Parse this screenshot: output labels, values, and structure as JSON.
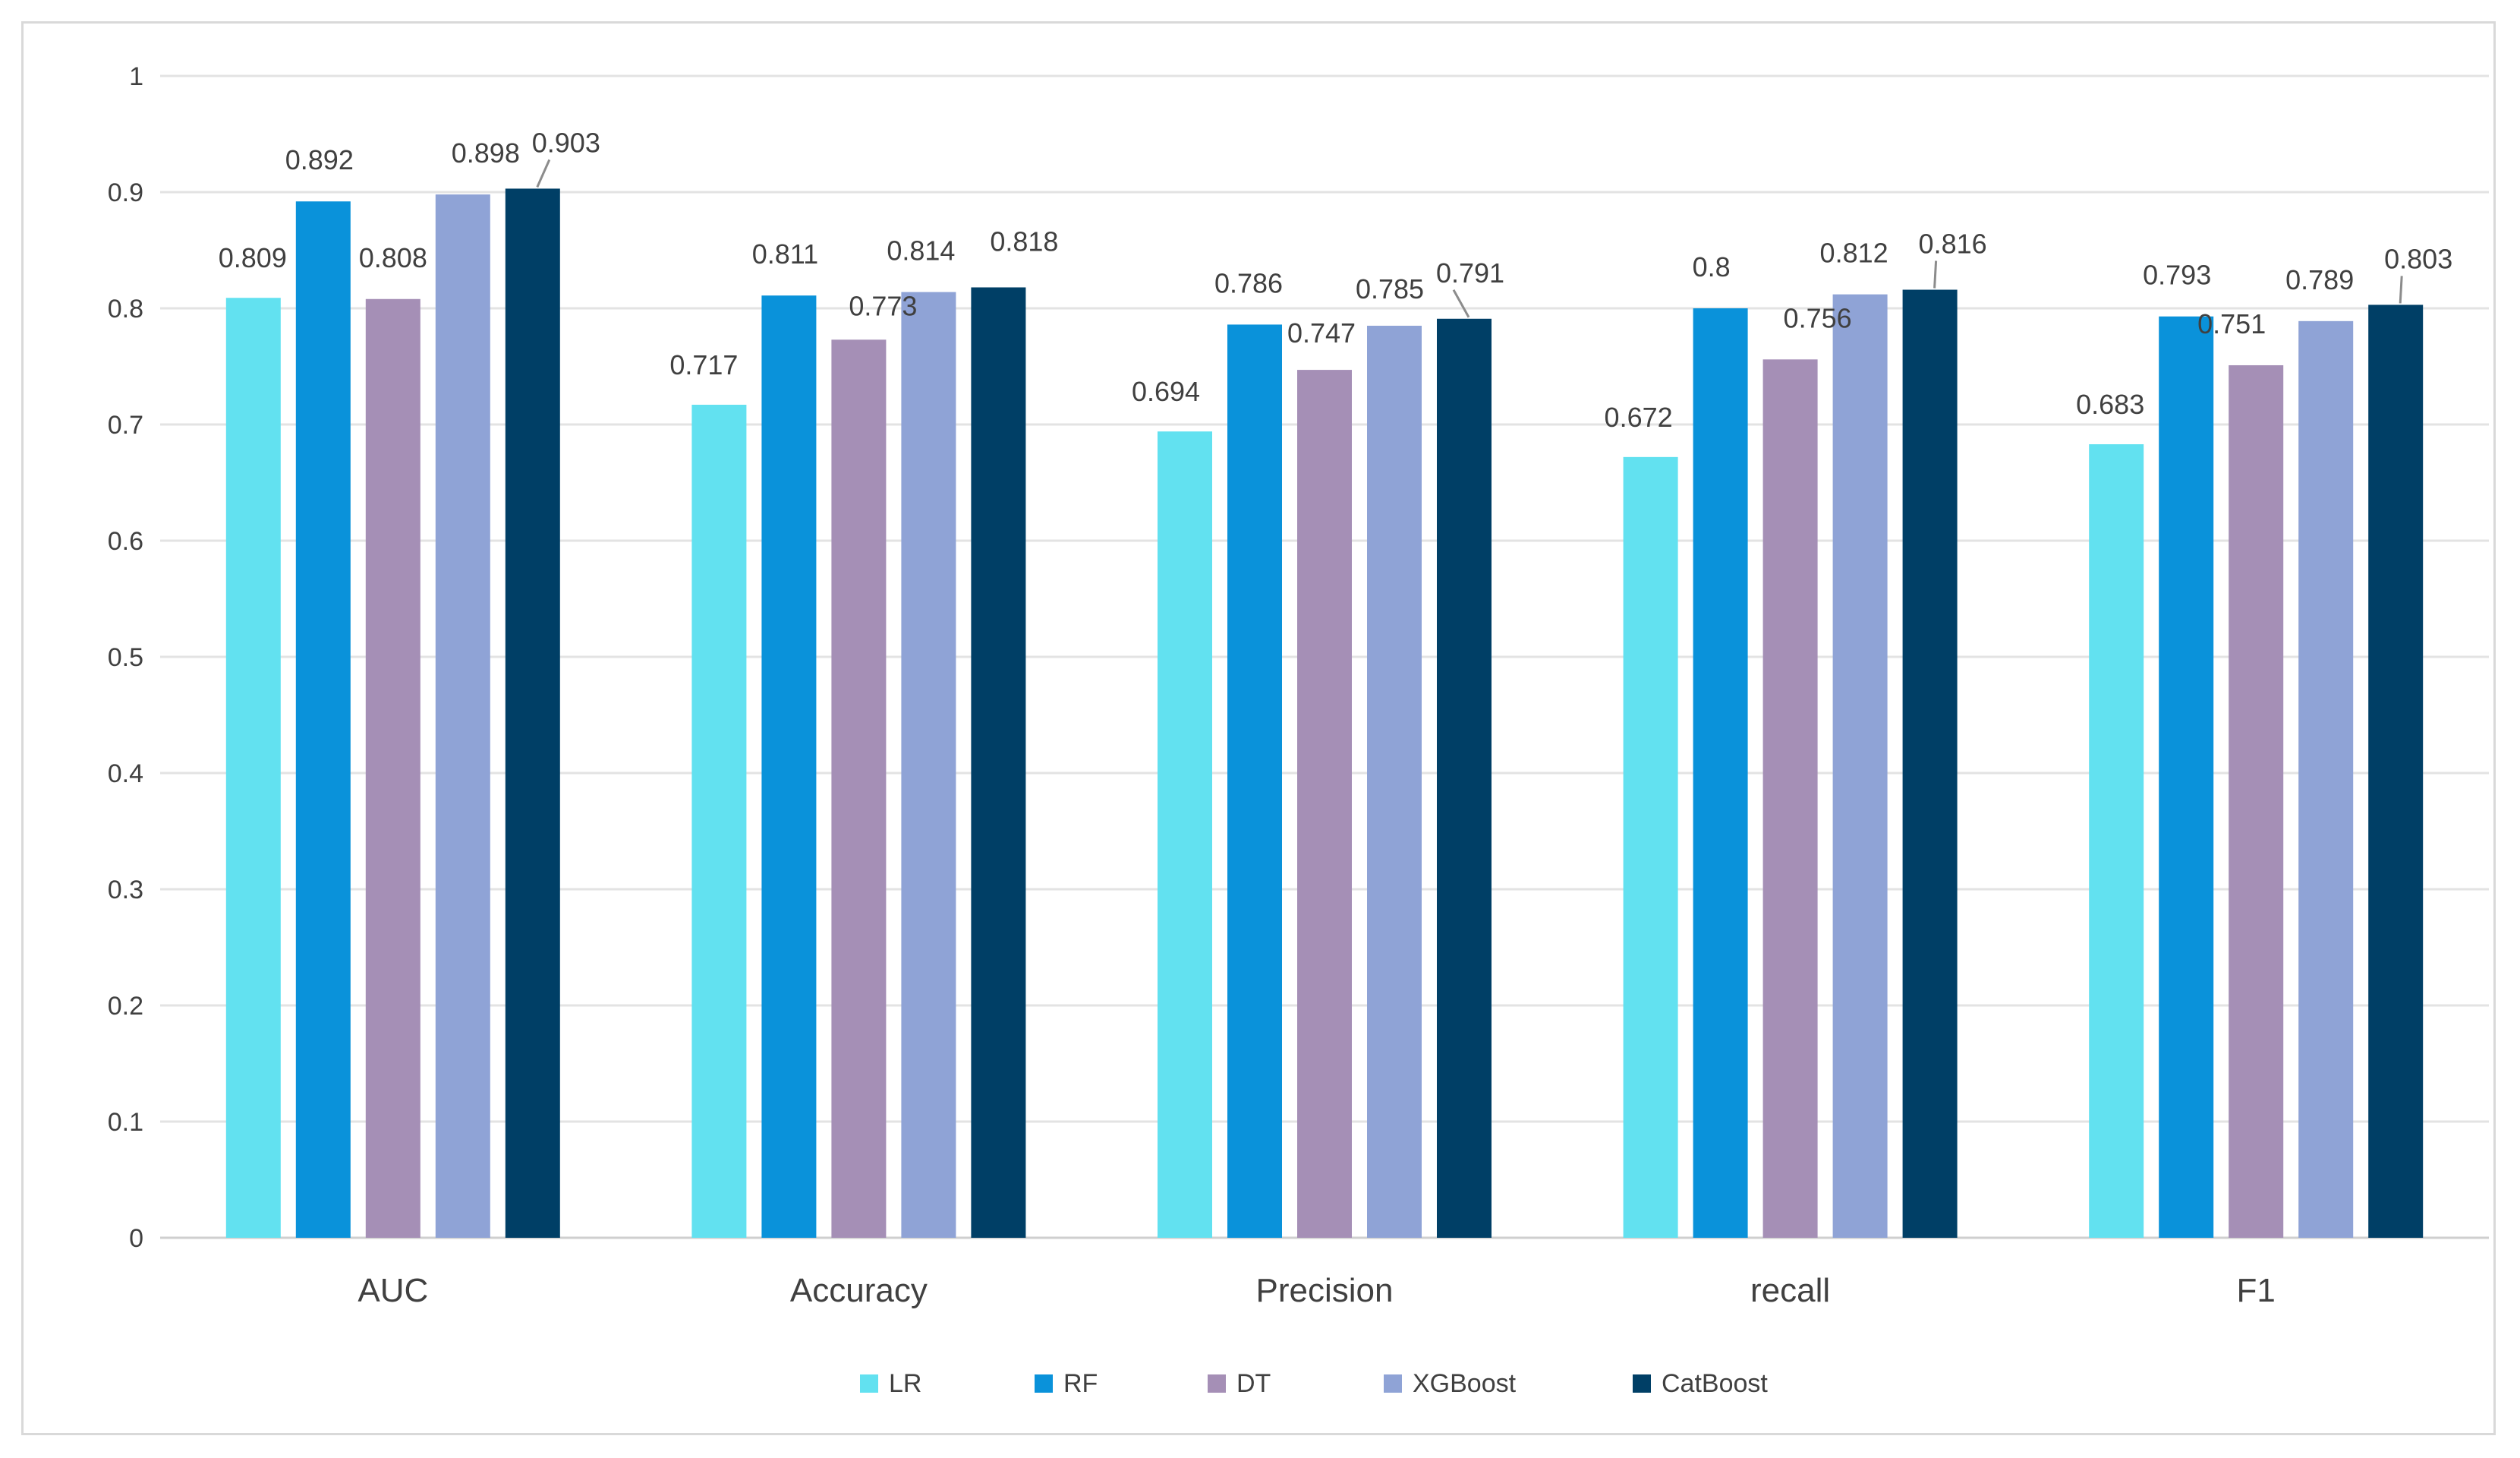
{
  "chart_data": {
    "type": "bar",
    "title": "",
    "xlabel": "",
    "ylabel": "",
    "ylim": [
      0,
      1
    ],
    "yticks": [
      "0",
      "0.1",
      "0.2",
      "0.3",
      "0.4",
      "0.5",
      "0.6",
      "0.7",
      "0.8",
      "0.9",
      "1"
    ],
    "grid": true,
    "legend_position": "bottom",
    "categories": [
      "AUC",
      "Accuracy",
      "Precision",
      "recall",
      "F1"
    ],
    "series": [
      {
        "name": "LR",
        "color": "#62e1f0",
        "values": [
          0.809,
          0.717,
          0.694,
          0.672,
          0.683
        ],
        "labels": [
          "0.809",
          "0.717",
          "0.694",
          "0.672",
          "0.683"
        ]
      },
      {
        "name": "RF",
        "color": "#0a92da",
        "values": [
          0.892,
          0.811,
          0.786,
          0.8,
          0.793
        ],
        "labels": [
          "0.892",
          "0.811",
          "0.786",
          "0.8",
          "0.793"
        ]
      },
      {
        "name": "DT",
        "color": "#a58fb6",
        "values": [
          0.808,
          0.773,
          0.747,
          0.756,
          0.751
        ],
        "labels": [
          "0.808",
          "0.773",
          "0.747",
          "0.756",
          "0.751"
        ]
      },
      {
        "name": "XGBoost",
        "color": "#8fa3d6",
        "values": [
          0.898,
          0.814,
          0.785,
          0.812,
          0.789
        ],
        "labels": [
          "0.898",
          "0.814",
          "0.785",
          "0.812",
          "0.789"
        ]
      },
      {
        "name": "CatBoost",
        "color": "#003f66",
        "values": [
          0.903,
          0.818,
          0.791,
          0.816,
          0.803
        ],
        "labels": [
          "0.903",
          "0.818",
          "0.791",
          "0.816",
          "0.803"
        ]
      }
    ]
  }
}
